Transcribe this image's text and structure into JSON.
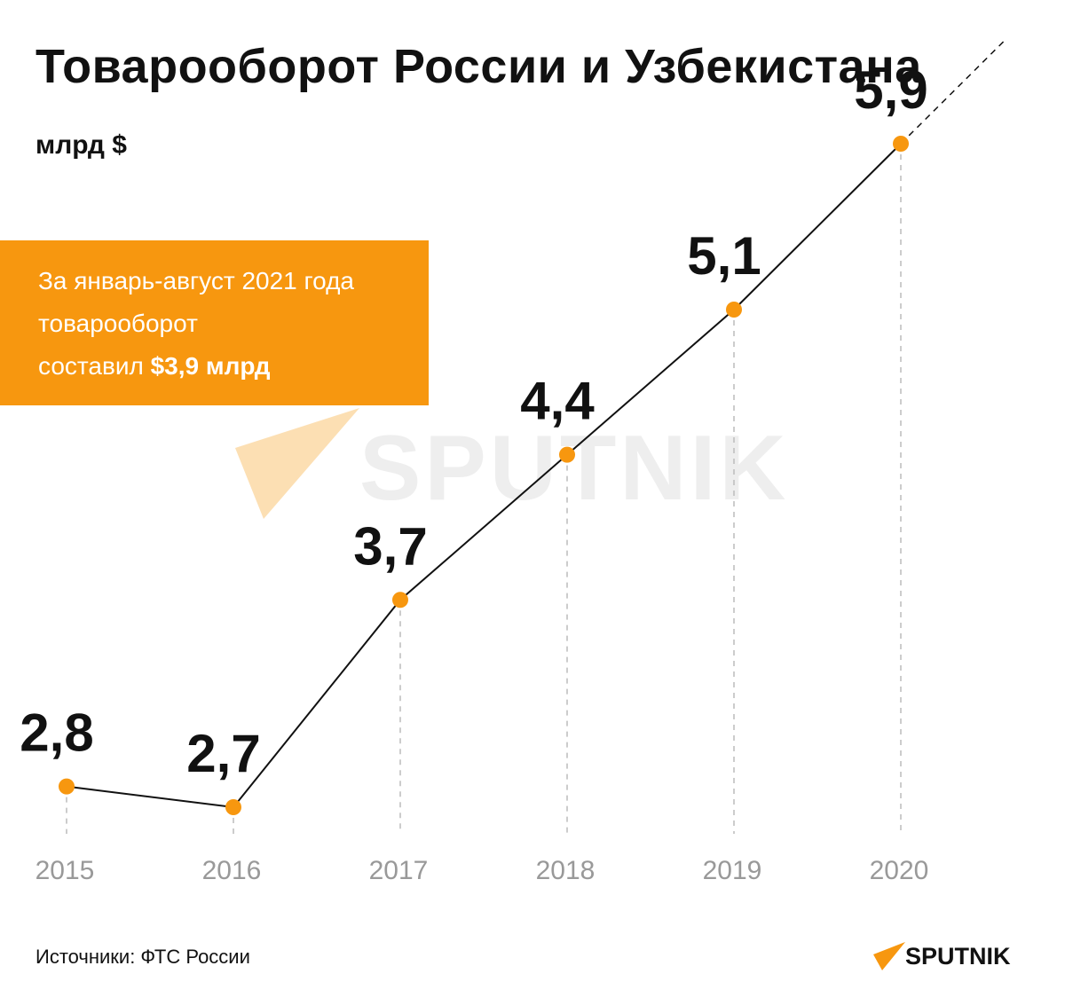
{
  "header": {
    "title": "Товарооборот России и Узбекистана",
    "unit": "млрд $"
  },
  "note": {
    "line1": "За январь-август 2021 года",
    "line2": "товарооборот",
    "line3_prefix": "составил ",
    "line3_bold": "$3,9 млрд"
  },
  "watermark": {
    "text": "SPUTNIK",
    "icon": "sputnik-arrow-icon"
  },
  "chart_data": {
    "type": "line",
    "title": "Товарооборот России и Узбекистана",
    "ylabel": "млрд $",
    "x": [
      "2015",
      "2016",
      "2017",
      "2018",
      "2019",
      "2020"
    ],
    "values": [
      2.8,
      2.7,
      3.7,
      4.4,
      5.1,
      5.9
    ],
    "value_labels": [
      "2,8",
      "2,7",
      "3,7",
      "4,4",
      "5,1",
      "5,9"
    ],
    "trend_continuation": "dashed",
    "grid": "vertical dashed drop lines",
    "colors": {
      "line": "#111111",
      "marker": "#f7970f",
      "tick": "#999999",
      "grid": "#bbbbbb"
    }
  },
  "footer": {
    "source": "Источники: ФТС России",
    "logo_text": "SPUTNIK",
    "logo_icon": "sputnik-arrow-icon"
  },
  "colors": {
    "accent": "#f7970f",
    "text": "#111111",
    "watermark": "#ebebeb"
  }
}
